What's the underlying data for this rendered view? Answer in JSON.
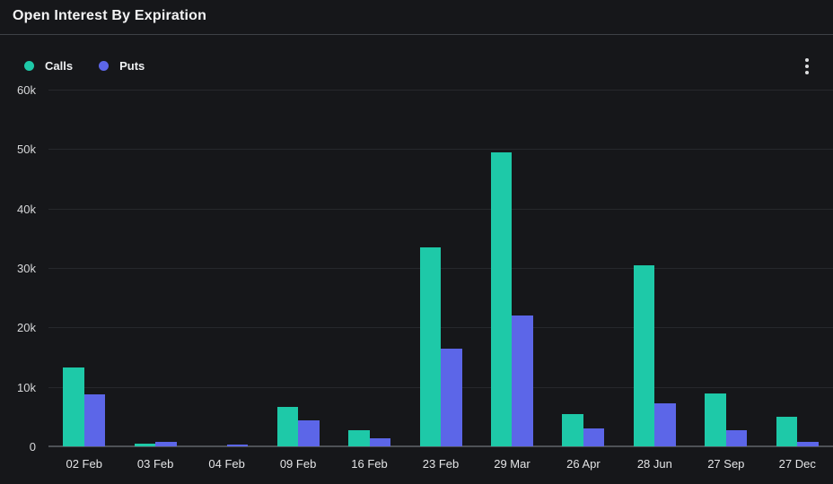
{
  "panel": {
    "title": "Open Interest By Expiration",
    "menu_icon": "kebab-vertical"
  },
  "legend": {
    "items": [
      {
        "label": "Calls",
        "color": "#1ec9a8"
      },
      {
        "label": "Puts",
        "color": "#5c66e8"
      }
    ]
  },
  "chart_data": {
    "type": "bar",
    "title": "Open Interest By Expiration",
    "categories": [
      "02 Feb",
      "03 Feb",
      "04 Feb",
      "09 Feb",
      "16 Feb",
      "23 Feb",
      "29 Mar",
      "26 Apr",
      "28 Jun",
      "27 Sep",
      "27 Dec"
    ],
    "series": [
      {
        "name": "Calls",
        "color": "#1ec9a8",
        "values": [
          13200,
          400,
          0,
          6600,
          2700,
          33500,
          49500,
          5400,
          30400,
          8900,
          5000
        ]
      },
      {
        "name": "Puts",
        "color": "#5c66e8",
        "values": [
          8800,
          700,
          350,
          4300,
          1400,
          16400,
          22000,
          3000,
          7300,
          2700,
          700
        ]
      }
    ],
    "xlabel": "",
    "ylabel": "",
    "ylim": [
      0,
      60000
    ],
    "yticks": [
      {
        "value": 0,
        "label": "0"
      },
      {
        "value": 10000,
        "label": "10k"
      },
      {
        "value": 20000,
        "label": "20k"
      },
      {
        "value": 30000,
        "label": "30k"
      },
      {
        "value": 40000,
        "label": "40k"
      },
      {
        "value": 50000,
        "label": "50k"
      },
      {
        "value": 60000,
        "label": "60k"
      }
    ],
    "grid": true,
    "legend_position": "top-left",
    "background_color": "#16171a"
  }
}
